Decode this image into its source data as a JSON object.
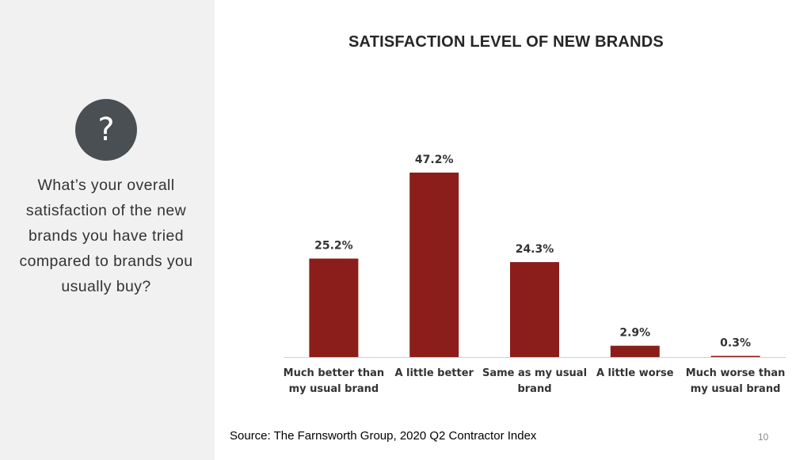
{
  "sidebar": {
    "icon": "question-mark-icon",
    "icon_glyph": "?",
    "question_lines": [
      "What’s your overall",
      "satisfaction of the new",
      "brands you have tried",
      "compared to brands you",
      "usually buy?"
    ]
  },
  "chart_data": {
    "type": "bar",
    "title": "SATISFACTION LEVEL OF NEW BRANDS",
    "categories": [
      [
        "Much better than",
        "my usual brand"
      ],
      [
        "A little better"
      ],
      [
        "Same as my usual",
        "brand"
      ],
      [
        "A little worse"
      ],
      [
        "Much worse than",
        "my usual brand"
      ]
    ],
    "values": [
      25.2,
      47.2,
      24.3,
      2.9,
      0.3
    ],
    "value_labels": [
      "25.2%",
      "47.2%",
      "24.3%",
      "2.9%",
      "0.3%"
    ],
    "ylim": [
      0,
      50
    ],
    "grid": false,
    "legend": "none",
    "bar_color": "#8b1e1a"
  },
  "footer": {
    "source": "Source: The Farnsworth Group, 2020 Q2 Contractor Index",
    "page_number": "10"
  }
}
